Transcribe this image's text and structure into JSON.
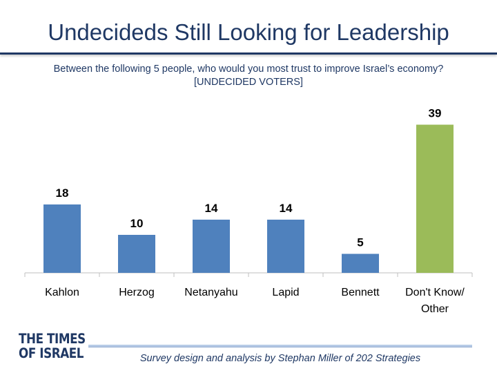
{
  "header": {
    "title": "Undecideds Still Looking for Leadership",
    "subtitle_line1": "Between the following 5 people, who would you most trust to improve Israel’s economy?",
    "subtitle_line2": "[UNDECIDED VOTERS]"
  },
  "chart_data": {
    "type": "bar",
    "title": "Undecideds Still Looking for Leadership",
    "categories": [
      [
        "Kahlon"
      ],
      [
        "Herzog"
      ],
      [
        "Netanyahu"
      ],
      [
        "Lapid"
      ],
      [
        "Bennett"
      ],
      [
        "Don't Know/",
        "Other"
      ]
    ],
    "values": [
      18,
      10,
      14,
      14,
      5,
      39
    ],
    "xlabel": "",
    "ylabel": "",
    "ylim": [
      0,
      40
    ],
    "grid": false,
    "legend": "none",
    "colors": [
      "#4f81bd",
      "#4f81bd",
      "#4f81bd",
      "#4f81bd",
      "#4f81bd",
      "#9bbb59"
    ]
  },
  "footer": {
    "logo_line1": "THE TIMES",
    "logo_line2": "OF ISRAEL",
    "credit": "Survey design and analysis by Stephan Miller of 202 Strategies"
  },
  "colors": {
    "title": "#1f3864",
    "axis": "#bfbfbf",
    "footer_rule": "#b7cbe6"
  }
}
